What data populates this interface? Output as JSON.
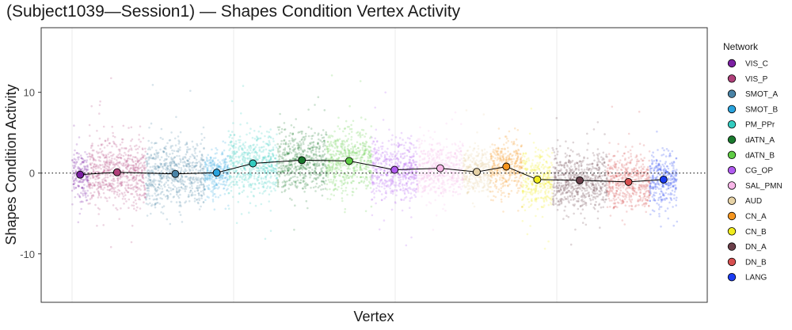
{
  "chart_data": {
    "type": "scatter",
    "title": "(Subject1039—Session1) — Shapes Condition Vertex Activity",
    "xlabel": "Vertex",
    "ylabel": "Shapes Condition Activity",
    "ylim": [
      -16,
      18
    ],
    "yticks": [
      -10,
      0,
      10
    ],
    "zero_line": "dotted",
    "grid": "light vertical",
    "legend_title": "Network",
    "legend_position": "right",
    "series": [
      {
        "name": "VIS_C",
        "color": "#7b1fa2",
        "mean": -0.2,
        "x_range": [
          0.0,
          2.2
        ],
        "spread": 2.0
      },
      {
        "name": "VIS_P",
        "color": "#b0407a",
        "mean": 0.1,
        "x_range": [
          2.2,
          10.0
        ],
        "spread": 2.6
      },
      {
        "name": "SMOT_A",
        "color": "#4a83a6",
        "mean": -0.1,
        "x_range": [
          10.0,
          18.0
        ],
        "spread": 2.6
      },
      {
        "name": "SMOT_B",
        "color": "#29a3dd",
        "mean": 0.05,
        "x_range": [
          18.0,
          21.2
        ],
        "spread": 1.8
      },
      {
        "name": "PM_PPr",
        "color": "#33ccc0",
        "mean": 1.2,
        "x_range": [
          21.2,
          27.8
        ],
        "spread": 2.4
      },
      {
        "name": "dATN_A",
        "color": "#1a7a2e",
        "mean": 1.6,
        "x_range": [
          27.8,
          34.5
        ],
        "spread": 2.6
      },
      {
        "name": "dATN_B",
        "color": "#5fcc45",
        "mean": 1.5,
        "x_range": [
          34.5,
          40.6
        ],
        "spread": 2.5
      },
      {
        "name": "CG_OP",
        "color": "#b15bf0",
        "mean": 0.4,
        "x_range": [
          40.6,
          46.8
        ],
        "spread": 2.4
      },
      {
        "name": "SAL_PMN",
        "color": "#f8b6e8",
        "mean": 0.6,
        "x_range": [
          46.8,
          53.0
        ],
        "spread": 2.3
      },
      {
        "name": "AUD",
        "color": "#e6d2a6",
        "mean": 0.15,
        "x_range": [
          53.0,
          56.7
        ],
        "spread": 1.8
      },
      {
        "name": "CN_A",
        "color": "#f5951f",
        "mean": 0.8,
        "x_range": [
          56.7,
          61.0
        ],
        "spread": 2.2
      },
      {
        "name": "CN_B",
        "color": "#f0ec1e",
        "mean": -0.8,
        "x_range": [
          61.0,
          65.1
        ],
        "spread": 2.2
      },
      {
        "name": "DN_A",
        "color": "#6b3f4a",
        "mean": -0.9,
        "x_range": [
          65.1,
          72.5
        ],
        "spread": 2.4
      },
      {
        "name": "DN_B",
        "color": "#d64f4f",
        "mean": -1.1,
        "x_range": [
          72.5,
          78.3
        ],
        "spread": 2.2
      },
      {
        "name": "LANG",
        "color": "#1b3cf2",
        "mean": -0.8,
        "x_range": [
          78.3,
          82.0
        ],
        "spread": 2.3
      }
    ]
  }
}
